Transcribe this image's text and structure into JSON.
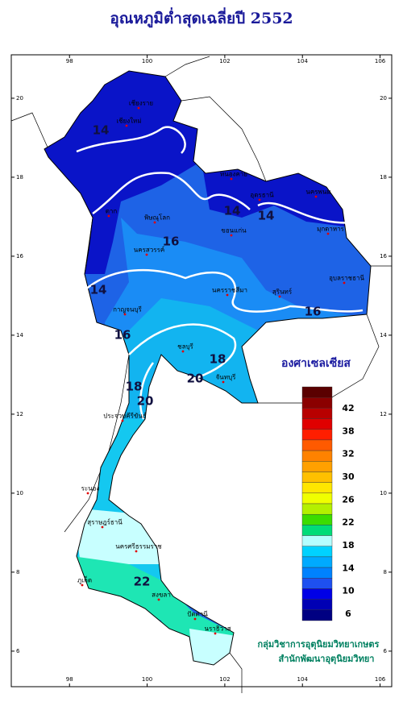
{
  "title": "อุณหภูมิต่ำสุดเฉลี่ยปี 2552",
  "map": {
    "xlim": [
      96.5,
      106.3
    ],
    "ylim": [
      5.1,
      21.1
    ],
    "xticks": [
      98,
      100,
      102,
      104,
      106
    ],
    "yticks": [
      6,
      8,
      10,
      12,
      14,
      16,
      18,
      20
    ],
    "contour_labels": [
      14,
      14,
      14,
      16,
      14,
      16,
      16,
      18,
      20,
      18,
      20,
      22
    ],
    "places": [
      "เชียงใหม่",
      "เชียงราย",
      "หนองคาย",
      "นครพนม",
      "มุกดาหาร",
      "อุดรธานี",
      "ขอนแก่น",
      "พิษณุโลก",
      "ตาก",
      "นครสวรรค์",
      "นครราชสีมา",
      "สุรินทร์",
      "อุบลราชธานี",
      "กาญจนบุรี",
      "ชลบุรี",
      "จันทบุรี",
      "ประจวบคีรีขันธ์",
      "ระนอง",
      "สุราษฎร์ธานี",
      "นครศรีธรรมราช",
      "ภูเก็ต",
      "สงขลา",
      "ปัตตานี",
      "นราธิวาส"
    ]
  },
  "legend": {
    "title": "องศาเซลเซียส",
    "colors": [
      "#5a0000",
      "#8b0000",
      "#b80000",
      "#e00000",
      "#ff1e00",
      "#ff5a00",
      "#ff8200",
      "#ffa000",
      "#ffc000",
      "#ffe600",
      "#f0ff00",
      "#b4f000",
      "#3cdc00",
      "#00dc78",
      "#b4ffff",
      "#00d2ff",
      "#00aaff",
      "#0082ff",
      "#1e50f0",
      "#0000e6",
      "#0000b4",
      "#000082"
    ],
    "labels": [
      42,
      38,
      32,
      30,
      26,
      22,
      18,
      14,
      10,
      6
    ]
  },
  "credit": [
    "กลุ่มวิชาการอุตุนิยมวิทยาเกษตร",
    "สำนักพัฒนาอุตุนิยมวิทยา"
  ]
}
